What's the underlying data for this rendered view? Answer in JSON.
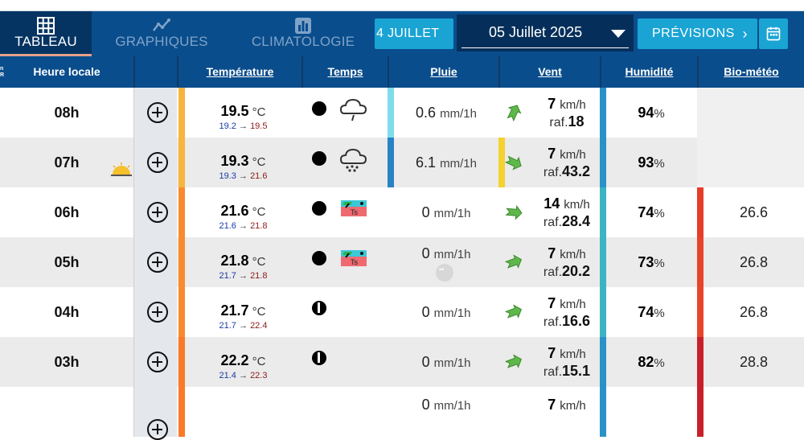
{
  "nav": {
    "tabs": [
      {
        "label": "TABLEAU",
        "icon": "grid-table-icon",
        "active": true
      },
      {
        "label": "GRAPHIQUES",
        "icon": "line-chart-icon",
        "active": false
      },
      {
        "label": "CLIMATOLOGIE",
        "icon": "bar-chart-icon",
        "active": false
      }
    ],
    "prev_day": "4 JUILLET",
    "date_value": "05 Juillet 2025",
    "forecast_label": "PRÉVISIONS",
    "calendar_icon": "calendar-icon"
  },
  "header": {
    "tiny": "n\nR",
    "hour": "Heure locale",
    "temperature": "Température",
    "weather": "Temps",
    "rain": "Pluie",
    "wind": "Vent",
    "humidity": "Humidité",
    "biometeo": "Bio-météo"
  },
  "units": {
    "temp": "°C",
    "rain": "mm/1h",
    "wind": "km/h",
    "gust_prefix": "raf.",
    "humidity": "%",
    "arrow": "→"
  },
  "rows": [
    {
      "hour": "08h",
      "temp": "19.5",
      "tmin": "19.2",
      "tmax": "19.5",
      "tempColor": "#f8b43c",
      "sky": "full",
      "icon": "rain-cloud-icon",
      "rain": "0.6",
      "rainColor": "#7fdcec",
      "windColor": "",
      "windArrow": "up",
      "wind": "7",
      "gust": "18",
      "humidity": "94",
      "humColor": "#2a92c8",
      "bio": "",
      "bioColor": ""
    },
    {
      "hour": "07h",
      "temp": "19.3",
      "tmin": "19.3",
      "tmax": "21.6",
      "tempColor": "#f8b43c",
      "sky": "full",
      "icon": "heavy-rain-cloud-icon",
      "rain": "6.1",
      "rainColor": "#2a82c4",
      "windColor": "#f4d230",
      "windArrow": "down-right",
      "wind": "7",
      "gust": "43.2",
      "humidity": "93",
      "humColor": "#2a92c8",
      "bio": "",
      "bioColor": "",
      "sunrise": true
    },
    {
      "hour": "06h",
      "temp": "21.6",
      "tmin": "21.6",
      "tmax": "21.8",
      "tempColor": "#fa8a2e",
      "sky": "full",
      "icon": "thunderstorm-map-icon",
      "rain": "0",
      "rainColor": "",
      "windColor": "",
      "windArrow": "right",
      "wind": "14",
      "gust": "28.4",
      "humidity": "74",
      "humColor": "#3cb4c4",
      "bio": "26.6",
      "bioColor": "#e63c2a"
    },
    {
      "hour": "05h",
      "temp": "21.8",
      "tmin": "21.7",
      "tmax": "21.8",
      "tempColor": "#fa8a2e",
      "sky": "full",
      "icon": "thunderstorm-map-icon",
      "rain": "0",
      "rainColor": "",
      "windColor": "",
      "windArrow": "right-up",
      "wind": "7",
      "gust": "20.2",
      "humidity": "73",
      "humColor": "#3cb4c4",
      "bio": "26.8",
      "bioColor": "#e8442a",
      "drops": true
    },
    {
      "hour": "04h",
      "temp": "21.7",
      "tmin": "21.7",
      "tmax": "22.4",
      "tempColor": "#fa8a2e",
      "sky": "half",
      "icon": "",
      "rain": "0",
      "rainColor": "",
      "windColor": "",
      "windArrow": "right-up",
      "wind": "7",
      "gust": "16.6",
      "humidity": "74",
      "humColor": "#3cb4c4",
      "bio": "26.8",
      "bioColor": "#e8442a"
    },
    {
      "hour": "03h",
      "temp": "22.2",
      "tmin": "21.4",
      "tmax": "22.3",
      "tempColor": "#fa7a28",
      "sky": "half",
      "icon": "",
      "rain": "0",
      "rainColor": "",
      "windColor": "",
      "windArrow": "right-up",
      "wind": "7",
      "gust": "15.1",
      "humidity": "82",
      "humColor": "#2a92c8",
      "bio": "28.8",
      "bioColor": "#c8202a"
    },
    {
      "hour": "",
      "temp": "",
      "tmin": "",
      "tmax": "",
      "tempColor": "#fa7a28",
      "sky": "",
      "icon": "",
      "rain": "0",
      "rainColor": "",
      "windColor": "",
      "windArrow": "",
      "wind": "7",
      "gust": "",
      "humidity": "",
      "humColor": "#2a92c8",
      "bio": "",
      "bioColor": "#c8202a",
      "partial": true
    }
  ]
}
